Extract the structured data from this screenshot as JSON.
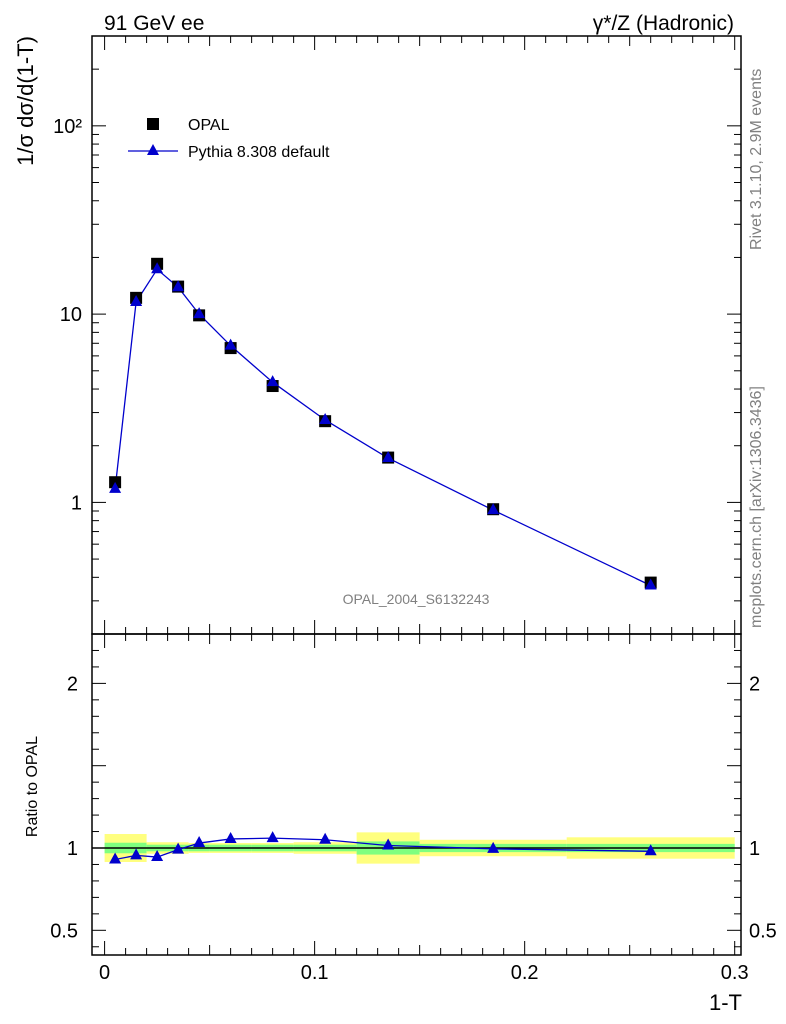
{
  "header": {
    "left": "91 GeV ee",
    "right_sup": "γ*/Z (Hadronic)"
  },
  "side_labels": {
    "rivet": "Rivet 3.1.10,  2.9M events",
    "mcplots": "mcplots.cern.ch [arXiv:1306.3436]"
  },
  "analysis_id": "OPAL_2004_S6132243",
  "colors": {
    "data": "#000000",
    "mc": "#0000cc",
    "band_inner": "#7fff7f",
    "band_outer": "#ffff7f"
  },
  "chart_data": [
    {
      "type": "scatter",
      "ylabel": "1/σ dσ/d(1-T)",
      "yscale": "log",
      "ylim": [
        0.2,
        300
      ],
      "xlim": [
        -0.006,
        0.303
      ],
      "y_tick_labels": [
        "1",
        "10",
        "10²"
      ],
      "legend": {
        "placement": "top-left",
        "entries": [
          "OPAL",
          "Pythia 8.308 default"
        ]
      },
      "series": [
        {
          "name": "OPAL",
          "marker": "square",
          "x": [
            0.005,
            0.015,
            0.025,
            0.035,
            0.045,
            0.06,
            0.08,
            0.105,
            0.135,
            0.185,
            0.26
          ],
          "values": [
            1.28,
            12.2,
            18.5,
            14.0,
            9.85,
            6.6,
            4.15,
            2.7,
            1.73,
            0.92,
            0.375
          ]
        },
        {
          "name": "Pythia 8.308 default",
          "marker": "triangle",
          "x": [
            0.005,
            0.015,
            0.025,
            0.035,
            0.045,
            0.06,
            0.08,
            0.105,
            0.135,
            0.185,
            0.26
          ],
          "values": [
            1.18,
            11.6,
            17.3,
            13.9,
            10.0,
            6.8,
            4.35,
            2.74,
            1.72,
            0.91,
            0.362
          ]
        }
      ]
    },
    {
      "type": "line",
      "ylabel": "Ratio to OPAL",
      "xlabel": "1-T",
      "ylim": [
        0.35,
        2.3
      ],
      "xlim": [
        -0.006,
        0.303
      ],
      "y_tick_labels": [
        "0.5",
        "1",
        "2"
      ],
      "x_tick_labels": [
        "0",
        "0.1",
        "0.2",
        "0.3"
      ],
      "bins": [
        {
          "lo": 0.0,
          "hi": 0.02,
          "inner": 0.032,
          "outer": 0.085
        },
        {
          "lo": 0.02,
          "hi": 0.04,
          "inner": 0.02,
          "outer": 0.035
        },
        {
          "lo": 0.04,
          "hi": 0.05,
          "inner": 0.02,
          "outer": 0.03
        },
        {
          "lo": 0.05,
          "hi": 0.07,
          "inner": 0.02,
          "outer": 0.03
        },
        {
          "lo": 0.07,
          "hi": 0.09,
          "inner": 0.02,
          "outer": 0.03
        },
        {
          "lo": 0.09,
          "hi": 0.12,
          "inner": 0.02,
          "outer": 0.035
        },
        {
          "lo": 0.12,
          "hi": 0.15,
          "inner": 0.04,
          "outer": 0.095
        },
        {
          "lo": 0.15,
          "hi": 0.22,
          "inner": 0.025,
          "outer": 0.05
        },
        {
          "lo": 0.22,
          "hi": 0.3,
          "inner": 0.025,
          "outer": 0.065
        }
      ],
      "series": [
        {
          "name": "Pythia 8.308 default",
          "x": [
            0.005,
            0.015,
            0.025,
            0.035,
            0.045,
            0.06,
            0.08,
            0.105,
            0.135,
            0.185,
            0.26
          ],
          "values": [
            0.93,
            0.955,
            0.945,
            0.99,
            1.03,
            1.055,
            1.06,
            1.05,
            1.015,
            0.995,
            0.98
          ]
        }
      ]
    }
  ]
}
